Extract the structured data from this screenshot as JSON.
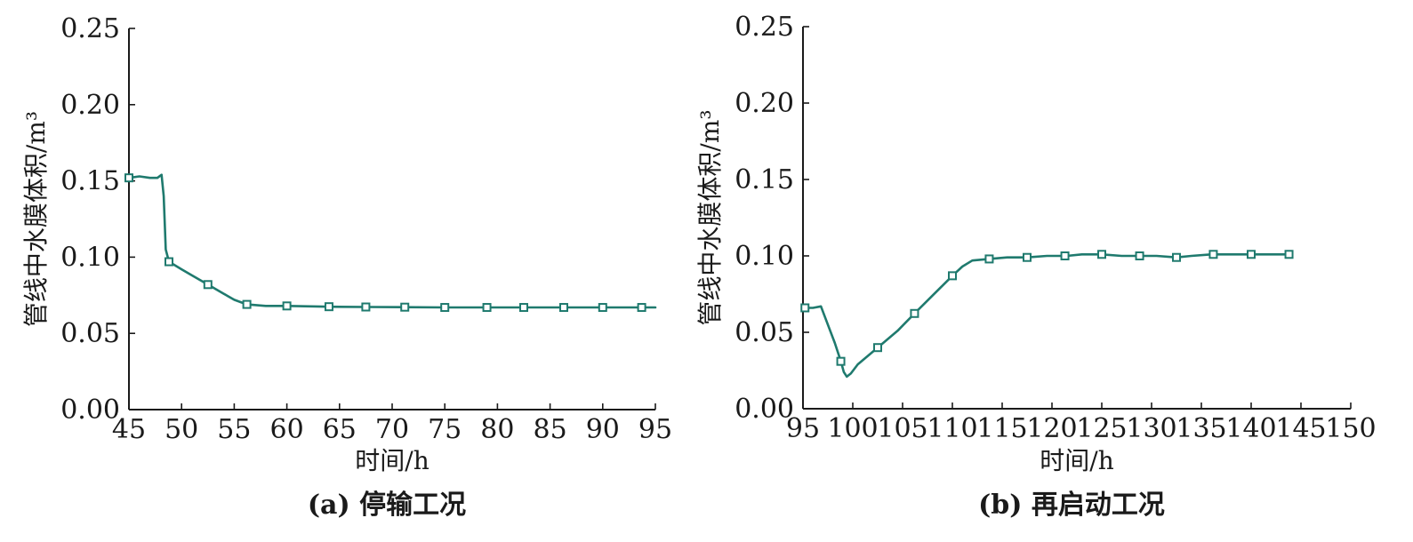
{
  "chart_data": [
    {
      "type": "line",
      "title": "",
      "caption": "(a) 停输工况",
      "xlabel": "时间/h",
      "ylabel": "管线中水膜体积/m³",
      "xlim": [
        45,
        95
      ],
      "ylim": [
        0,
        0.25
      ],
      "xticks": [
        45,
        50,
        55,
        60,
        65,
        70,
        75,
        80,
        85,
        90,
        95
      ],
      "yticks": [
        "0.00",
        "0.05",
        "0.10",
        "0.15",
        "0.20",
        "0.25"
      ],
      "grid": false,
      "color": "#1f7a6e",
      "series": [
        {
          "name": "",
          "x": [
            45,
            46,
            47,
            47.7,
            48.1,
            48.3,
            48.5,
            48.8,
            50,
            51,
            52.5,
            54,
            55,
            56.2,
            58,
            60,
            64,
            67.5,
            71,
            75,
            79,
            82.5,
            86,
            90,
            93.5,
            95
          ],
          "y": [
            0.152,
            0.153,
            0.152,
            0.152,
            0.154,
            0.14,
            0.105,
            0.097,
            0.092,
            0.088,
            0.082,
            0.076,
            0.072,
            0.069,
            0.068,
            0.068,
            0.0675,
            0.0673,
            0.0672,
            0.067,
            0.067,
            0.067,
            0.067,
            0.067,
            0.067,
            0.067
          ],
          "markers_x": [
            45,
            48.8,
            52.5,
            56.2,
            60,
            64,
            67.5,
            71.2,
            75,
            79,
            82.5,
            86.3,
            90,
            93.7
          ]
        }
      ]
    },
    {
      "type": "line",
      "title": "",
      "caption": "(b) 再启动工况",
      "xlabel": "时间/h",
      "ylabel": "管线中水膜体积/m³",
      "xlim": [
        95,
        150
      ],
      "ylim": [
        0,
        0.25
      ],
      "xticks": [
        95,
        100,
        105,
        110,
        115,
        120,
        125,
        130,
        135,
        140,
        145,
        150
      ],
      "yticks": [
        "0.00",
        "0.05",
        "0.10",
        "0.15",
        "0.20",
        "0.25"
      ],
      "grid": false,
      "color": "#1f7a6e",
      "series": [
        {
          "name": "",
          "x": [
            95,
            96,
            96.8,
            97.5,
            98.2,
            98.8,
            99.1,
            99.4,
            99.8,
            100.5,
            102.5,
            104.5,
            106.3,
            108,
            110,
            111,
            112,
            113.7,
            115.5,
            117.5,
            119.5,
            121.5,
            123,
            125,
            127,
            129,
            130.5,
            132.5,
            134,
            136,
            138,
            140,
            142,
            143.8
          ],
          "y": [
            0.066,
            0.066,
            0.067,
            0.055,
            0.043,
            0.031,
            0.024,
            0.021,
            0.023,
            0.029,
            0.04,
            0.051,
            0.063,
            0.074,
            0.087,
            0.093,
            0.097,
            0.098,
            0.099,
            0.099,
            0.1,
            0.1,
            0.101,
            0.101,
            0.1,
            0.1,
            0.1,
            0.099,
            0.1,
            0.101,
            0.101,
            0.101,
            0.101,
            0.101
          ],
          "markers_x": [
            95.2,
            98.8,
            102.5,
            106.2,
            110,
            113.7,
            117.5,
            121.3,
            125,
            128.8,
            132.5,
            136.2,
            140,
            143.8
          ]
        }
      ]
    }
  ]
}
